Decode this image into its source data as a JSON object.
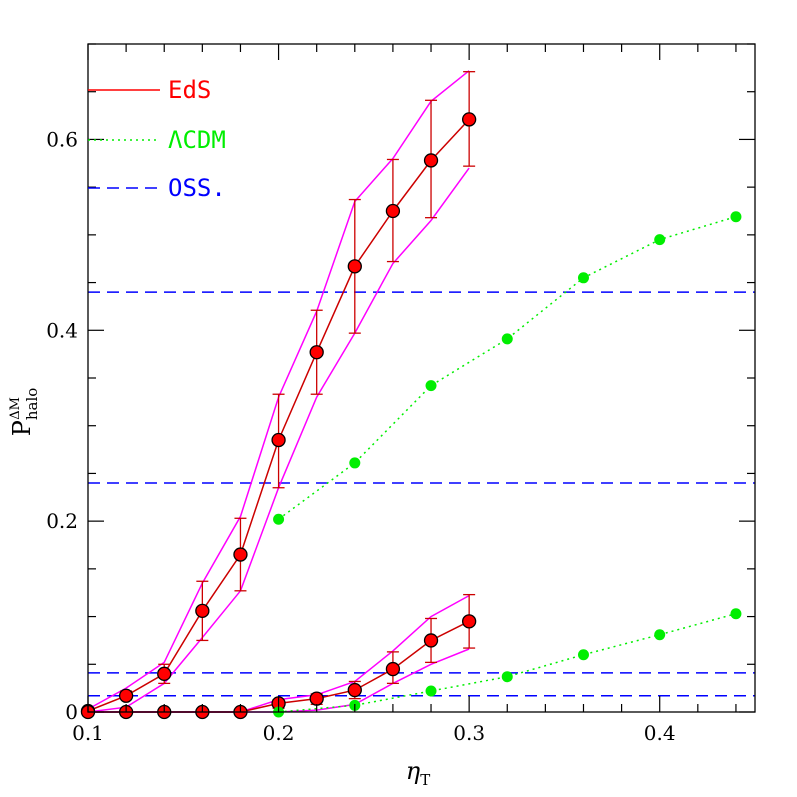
{
  "chart_data": {
    "type": "line",
    "xlabel": "η",
    "xlabel_sub": "T",
    "ylabel": "P",
    "ylabel_sub": "halo",
    "ylabel_sup": "ΔM",
    "xlim": [
      0.1,
      0.45
    ],
    "ylim": [
      0,
      0.7
    ],
    "x_ticks": [
      {
        "value": 0.1,
        "label": "0.1"
      },
      {
        "value": 0.2,
        "label": "0.2"
      },
      {
        "value": 0.3,
        "label": "0.3"
      },
      {
        "value": 0.4,
        "label": "0.4"
      }
    ],
    "y_ticks": [
      {
        "value": 0,
        "label": "0"
      },
      {
        "value": 0.2,
        "label": "0.2"
      },
      {
        "value": 0.4,
        "label": "0.4"
      },
      {
        "value": 0.6,
        "label": "0.6"
      }
    ],
    "x_minor_step": 0.02,
    "y_minor_step": 0.05,
    "grid": false,
    "legend_position": "top-left",
    "legend": [
      {
        "label": "EdS",
        "color": "#ff0000",
        "dash": "solid"
      },
      {
        "label": "ΛCDM",
        "color": "#00ee00",
        "dash": "dotted"
      },
      {
        "label": "OSS.",
        "color": "#0000ff",
        "dash": "dashed"
      }
    ],
    "colors": {
      "eds_line": "#cc0000",
      "eds_marker": "#ff0000",
      "errorbar": "#cc0000",
      "band": "#ff00ff",
      "lcdm": "#00ee00",
      "obs": "#0000ff"
    },
    "observed_levels": [
      0.44,
      0.24,
      0.041,
      0.017
    ],
    "series": [
      {
        "group": "EdS-upper",
        "x": [
          0.1,
          0.12,
          0.14,
          0.16,
          0.18,
          0.2,
          0.22,
          0.24,
          0.26,
          0.28,
          0.3
        ],
        "y": [
          0.001,
          0.017,
          0.04,
          0.106,
          0.165,
          0.285,
          0.377,
          0.467,
          0.525,
          0.578,
          0.621
        ],
        "err_low": [
          0.001,
          0.017,
          0.03,
          0.075,
          0.127,
          0.235,
          0.333,
          0.397,
          0.472,
          0.518,
          0.572
        ],
        "err_high": [
          0.001,
          0.022,
          0.05,
          0.137,
          0.203,
          0.333,
          0.421,
          0.537,
          0.579,
          0.641,
          0.671
        ],
        "band_low": [
          0.0,
          0.005,
          0.03,
          0.078,
          0.127,
          0.235,
          0.33,
          0.397,
          0.47,
          0.515,
          0.57
        ],
        "band_high": [
          0.003,
          0.025,
          0.052,
          0.135,
          0.205,
          0.33,
          0.42,
          0.535,
          0.58,
          0.64,
          0.672
        ]
      },
      {
        "group": "EdS-lower",
        "x": [
          0.1,
          0.12,
          0.14,
          0.16,
          0.18,
          0.2,
          0.22,
          0.24,
          0.26,
          0.28,
          0.3
        ],
        "y": [
          0.0,
          0.0,
          0.0,
          0.0,
          0.0,
          0.009,
          0.014,
          0.023,
          0.045,
          0.075,
          0.095
        ],
        "err_low": [
          0.0,
          0.0,
          0.0,
          0.0,
          0.0,
          0.004,
          0.008,
          0.014,
          0.03,
          0.052,
          0.067
        ],
        "err_high": [
          0.0,
          0.0,
          0.0,
          0.0,
          0.0,
          0.013,
          0.019,
          0.032,
          0.063,
          0.098,
          0.123
        ],
        "band_low": [
          0.0,
          0.0,
          0.0,
          0.0,
          0.0,
          0.0,
          0.002,
          0.008,
          0.03,
          0.05,
          0.066
        ],
        "band_high": [
          0.0,
          0.0,
          0.0,
          0.0,
          0.0,
          0.013,
          0.018,
          0.032,
          0.064,
          0.1,
          0.122
        ]
      },
      {
        "group": "ΛCDM-upper",
        "x": [
          0.2,
          0.24,
          0.28,
          0.32,
          0.36,
          0.4,
          0.44
        ],
        "y": [
          0.202,
          0.261,
          0.342,
          0.391,
          0.455,
          0.495,
          0.519
        ]
      },
      {
        "group": "ΛCDM-lower",
        "x": [
          0.2,
          0.24,
          0.28,
          0.32,
          0.36,
          0.4,
          0.44
        ],
        "y": [
          0.0,
          0.007,
          0.022,
          0.037,
          0.06,
          0.081,
          0.103
        ]
      }
    ]
  }
}
